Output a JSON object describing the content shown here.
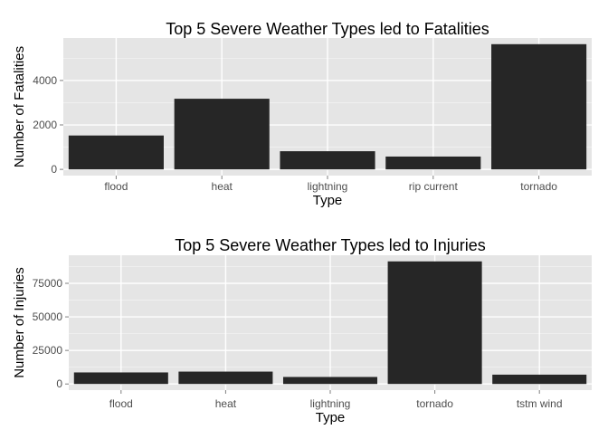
{
  "colors": {
    "panel_background": "#e5e5e5",
    "major_grid": "#ffffff",
    "minor_grid": "#f2f2f2",
    "bar_fill": "#262626",
    "tick_mark": "#7f7f7f",
    "tick_text": "#4d4d4d",
    "text": "#000000"
  },
  "chart_data": [
    {
      "type": "bar",
      "title": "Top 5 Severe Weather Types led to Fatalities",
      "xlabel": "Type",
      "ylabel": "Number of Fatalities",
      "categories": [
        "flood",
        "heat",
        "lightning",
        "rip current",
        "tornado"
      ],
      "values": [
        1524,
        3178,
        817,
        577,
        5633
      ],
      "ylim": [
        -280,
        5910
      ],
      "yticks": [
        0,
        2000,
        4000
      ],
      "ytick_labels": [
        "0",
        "2000",
        "4000"
      ],
      "grid": true,
      "legend": "none"
    },
    {
      "type": "bar",
      "title": "Top 5 Severe Weather Types led to Injuries",
      "xlabel": "Type",
      "ylabel": "Number of Injuries",
      "categories": [
        "flood",
        "heat",
        "lightning",
        "tornado",
        "tstm wind"
      ],
      "values": [
        8604,
        9224,
        5231,
        91346,
        6957
      ],
      "ylim": [
        -4570,
        95910
      ],
      "yticks": [
        0,
        25000,
        50000,
        75000
      ],
      "ytick_labels": [
        "0",
        "25000",
        "50000",
        "75000"
      ],
      "grid": true,
      "legend": "none"
    }
  ]
}
